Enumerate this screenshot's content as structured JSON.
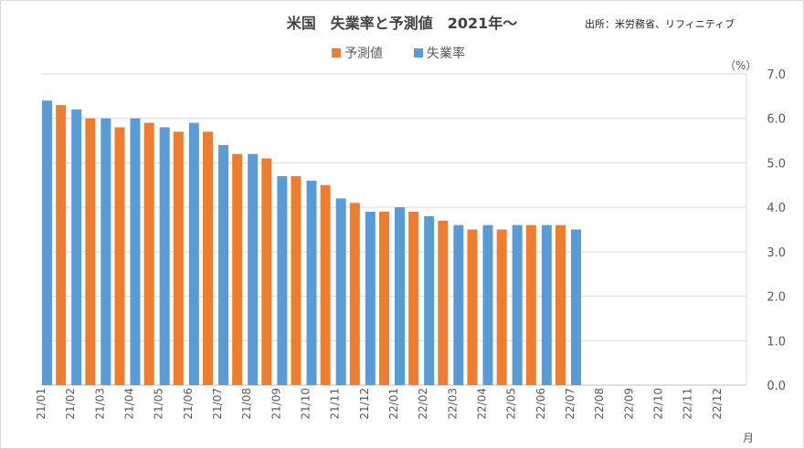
{
  "chart_data": {
    "type": "bar",
    "title": "米国　失業率と予測値　2021年～",
    "source": "出所：米労務省、リフィニティブ",
    "y_unit": "（%）",
    "x_unit": "月",
    "ylim": [
      0,
      7
    ],
    "yticks": [
      "0.0",
      "1.0",
      "2.0",
      "3.0",
      "4.0",
      "5.0",
      "6.0",
      "7.0"
    ],
    "y_axis_position": "right",
    "grid": true,
    "legend_position": "top-center",
    "categories": [
      "21/01",
      "21/02",
      "21/03",
      "21/04",
      "21/05",
      "21/06",
      "21/07",
      "21/08",
      "21/09",
      "21/10",
      "21/11",
      "21/12",
      "22/01",
      "22/02",
      "22/03",
      "22/04",
      "22/05",
      "22/06",
      "22/07",
      "22/08",
      "22/09",
      "22/10",
      "22/11",
      "22/12"
    ],
    "series": [
      {
        "name": "予測値",
        "color": "#ed7d31",
        "values": [
          null,
          6.3,
          6.0,
          5.8,
          5.9,
          5.7,
          5.7,
          5.2,
          5.1,
          4.7,
          4.5,
          4.1,
          3.9,
          3.9,
          3.7,
          3.5,
          3.5,
          3.6,
          3.6,
          null,
          null,
          null,
          null,
          null
        ]
      },
      {
        "name": "失業率",
        "color": "#5b9bd5",
        "values": [
          6.4,
          6.2,
          6.0,
          6.0,
          5.8,
          5.9,
          5.4,
          5.2,
          4.7,
          4.6,
          4.2,
          3.9,
          4.0,
          3.8,
          3.6,
          3.6,
          3.6,
          3.6,
          3.5,
          null,
          null,
          null,
          null,
          null
        ]
      }
    ]
  }
}
